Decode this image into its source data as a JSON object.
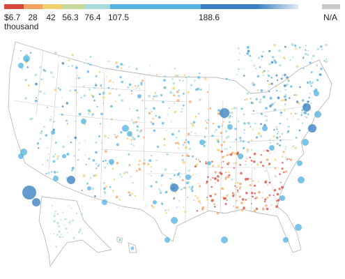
{
  "legend": {
    "labels": [
      "$6.7",
      "28",
      "42",
      "56.3",
      "76.4",
      "107.5",
      "188.6"
    ],
    "unit": "thousand",
    "na_label": "N/A",
    "colors": [
      "#d7473d",
      "#f4a261",
      "#f1cf6e",
      "#c6d89b",
      "#a8dadc",
      "#56b4e0",
      "#3a7fc1"
    ],
    "na_color": "#c8c8c8",
    "last_color": "#dfe9f5"
  },
  "map": {
    "region": "United States",
    "bubble_colors": {
      "low": "#d7473d",
      "mid_low": "#f4a261",
      "mid": "#f1cf6e",
      "mid_high": "#a8dadc",
      "high": "#56b4e0",
      "highest": "#3a7fc1"
    }
  }
}
